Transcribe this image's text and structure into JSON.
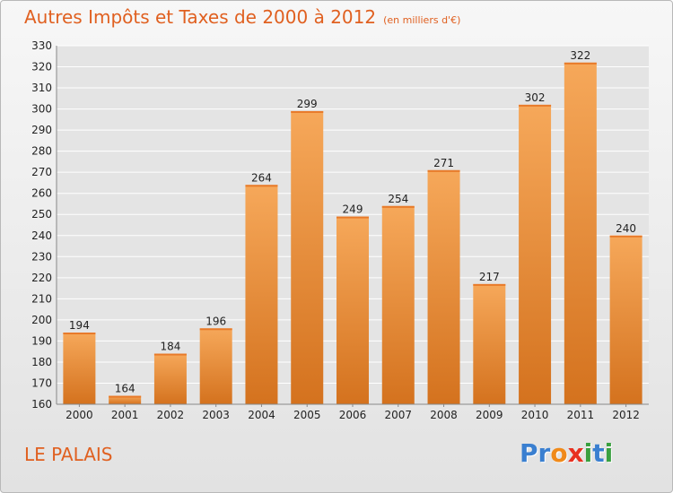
{
  "title": "Autres Impôts et Taxes de 2000 à 2012",
  "unit_note": "(en milliers d'€)",
  "city": "LE PALAIS",
  "logo": {
    "text": "Proxiti",
    "letters": [
      {
        "ch": "P",
        "color": "#3a7fd0"
      },
      {
        "ch": "r",
        "color": "#3a7fd0"
      },
      {
        "ch": "o",
        "color": "#f08a1a"
      },
      {
        "ch": "x",
        "color": "#e83020"
      },
      {
        "ch": "i",
        "color": "#3aa040"
      },
      {
        "ch": "t",
        "color": "#3a7fd0"
      },
      {
        "ch": "i",
        "color": "#3aa040"
      }
    ]
  },
  "colors": {
    "accent": "#e06020",
    "bar_light": "#f6a85a",
    "bar_dark": "#d4721e",
    "grid": "#ffffff"
  },
  "chart_data": {
    "type": "bar",
    "categories": [
      "2000",
      "2001",
      "2002",
      "2003",
      "2004",
      "2005",
      "2006",
      "2007",
      "2008",
      "2009",
      "2010",
      "2011",
      "2012"
    ],
    "values": [
      194,
      164,
      184,
      196,
      264,
      299,
      249,
      254,
      271,
      217,
      302,
      322,
      240
    ],
    "ylim": [
      160,
      330
    ],
    "yticks": [
      160,
      170,
      180,
      190,
      200,
      210,
      220,
      230,
      240,
      250,
      260,
      270,
      280,
      290,
      300,
      310,
      320,
      330
    ],
    "grid": true,
    "data_labels": true
  }
}
